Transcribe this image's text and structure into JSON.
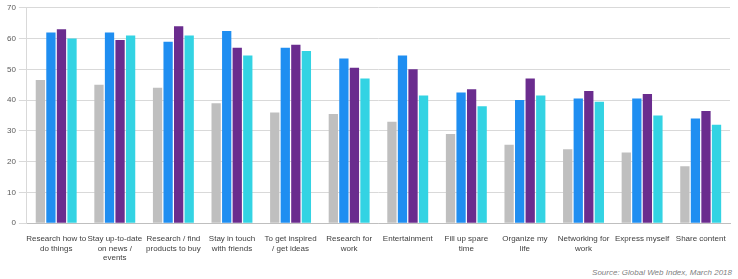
{
  "chart_data": {
    "type": "bar",
    "categories": [
      "Research how to do things",
      "Stay up-to-date on news / events",
      "Research / find products to buy",
      "Stay in touch with friends",
      "To get inspired / get ideas",
      "Research for work",
      "Entertainment",
      "Fill up spare time",
      "Organize my life",
      "Networking for work",
      "Express myself",
      "Share content"
    ],
    "series": [
      {
        "color": "#bfbfbf",
        "values": [
          46.5,
          45,
          44,
          39,
          36,
          35.5,
          33,
          29,
          25.5,
          24,
          23,
          18.5
        ]
      },
      {
        "color": "#1f8ef1",
        "values": [
          62,
          62,
          59,
          62.5,
          57,
          53.5,
          54.5,
          42.5,
          40,
          40.5,
          40.5,
          34
        ]
      },
      {
        "color": "#6a2c8e",
        "values": [
          63,
          59.5,
          64,
          57,
          58,
          50.5,
          50,
          43.5,
          47,
          43,
          42,
          36.5
        ]
      },
      {
        "color": "#33d3e3",
        "values": [
          60,
          61,
          61,
          54.5,
          56,
          47,
          41.5,
          38,
          41.5,
          39.5,
          35,
          32
        ]
      }
    ],
    "ylim": [
      0,
      70
    ],
    "yticks": [
      0,
      10,
      20,
      30,
      40,
      50,
      60,
      70
    ],
    "grid": true,
    "annotations": [
      "Source: Global Web Index, March 2018"
    ]
  }
}
